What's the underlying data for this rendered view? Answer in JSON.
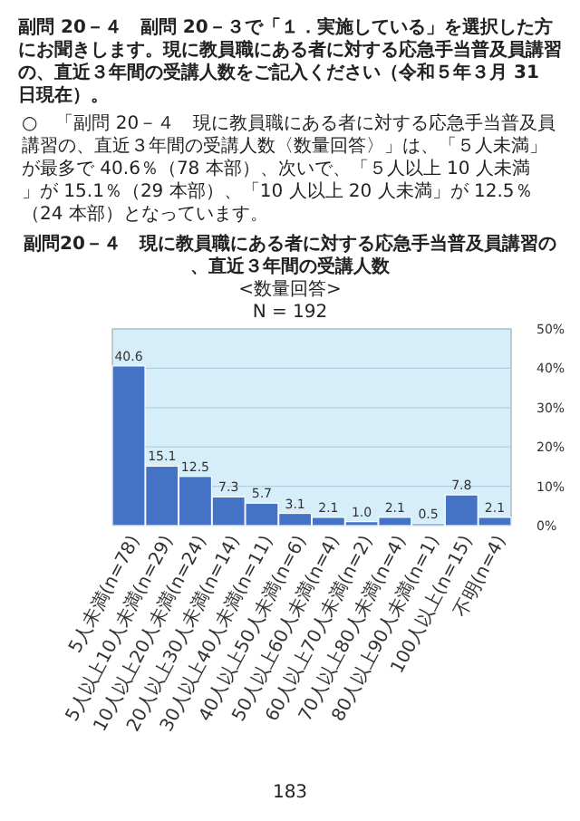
{
  "chart_data": {
    "type": "bar",
    "title": "副問20－４　現に教員職にある者に対する応急手当普及員講習の、直近３年間の受講人数",
    "subtitle": "<数量回答>",
    "annotations": [
      "副問 20－４　副問 20－３で「１．実施している」を選択した方にお聞きします。現に教員職にある者に対する応急手当普及員講習の、直近３年間の受講人数をご記入ください（令和５年３月 31 日現在）。",
      "○　「副問 20－４　現に教員職にある者に対する応急手当普及員講習の、直近３年間の受講人数〈数量回答〉」は、「５人未満」が最多で 40.6％（78 本部）、次いで、「５人以上 10 人未満」が 15.1％（29 本部）、「10 人以上 20 人未満」が 12.5％（24 本部）となっています。",
      "N = 192",
      "183"
    ],
    "categories": [
      "5人未満(n=78)",
      "5人以上10人未満(n=29)",
      "10人以上20人未満(n=24)",
      "20人以上30人未満(n=14)",
      "30人以上40人未満(n=11)",
      "40人以上50人未満(n=6)",
      "50人以上60人未満(n=4)",
      "60人以上70人未満(n=2)",
      "70人以上80人未満(n=4)",
      "80人以上90人未満(n=1)",
      "100人以上(n=15)",
      "不明(n=4)"
    ],
    "values": [
      40.6,
      15.1,
      12.5,
      7.3,
      5.7,
      3.1,
      2.1,
      1.0,
      2.1,
      0.5,
      7.8,
      2.1
    ],
    "value_labels": [
      "40.6",
      "15.1",
      "12.5",
      "7.3",
      "5.7",
      "3.1",
      "2.1",
      "1.0",
      "2.1",
      "0.5",
      "7.8",
      "2.1"
    ],
    "color": "#4472c4",
    "grid": "y",
    "ylim": [
      0,
      50
    ],
    "yticks": [
      {
        "value": 0,
        "label": "0%"
      },
      {
        "value": 10,
        "label": "10%"
      },
      {
        "value": 20,
        "label": "20%"
      },
      {
        "value": 30,
        "label": "30%"
      },
      {
        "value": 40,
        "label": "40%"
      },
      {
        "value": 50,
        "label": "50%"
      }
    ]
  }
}
